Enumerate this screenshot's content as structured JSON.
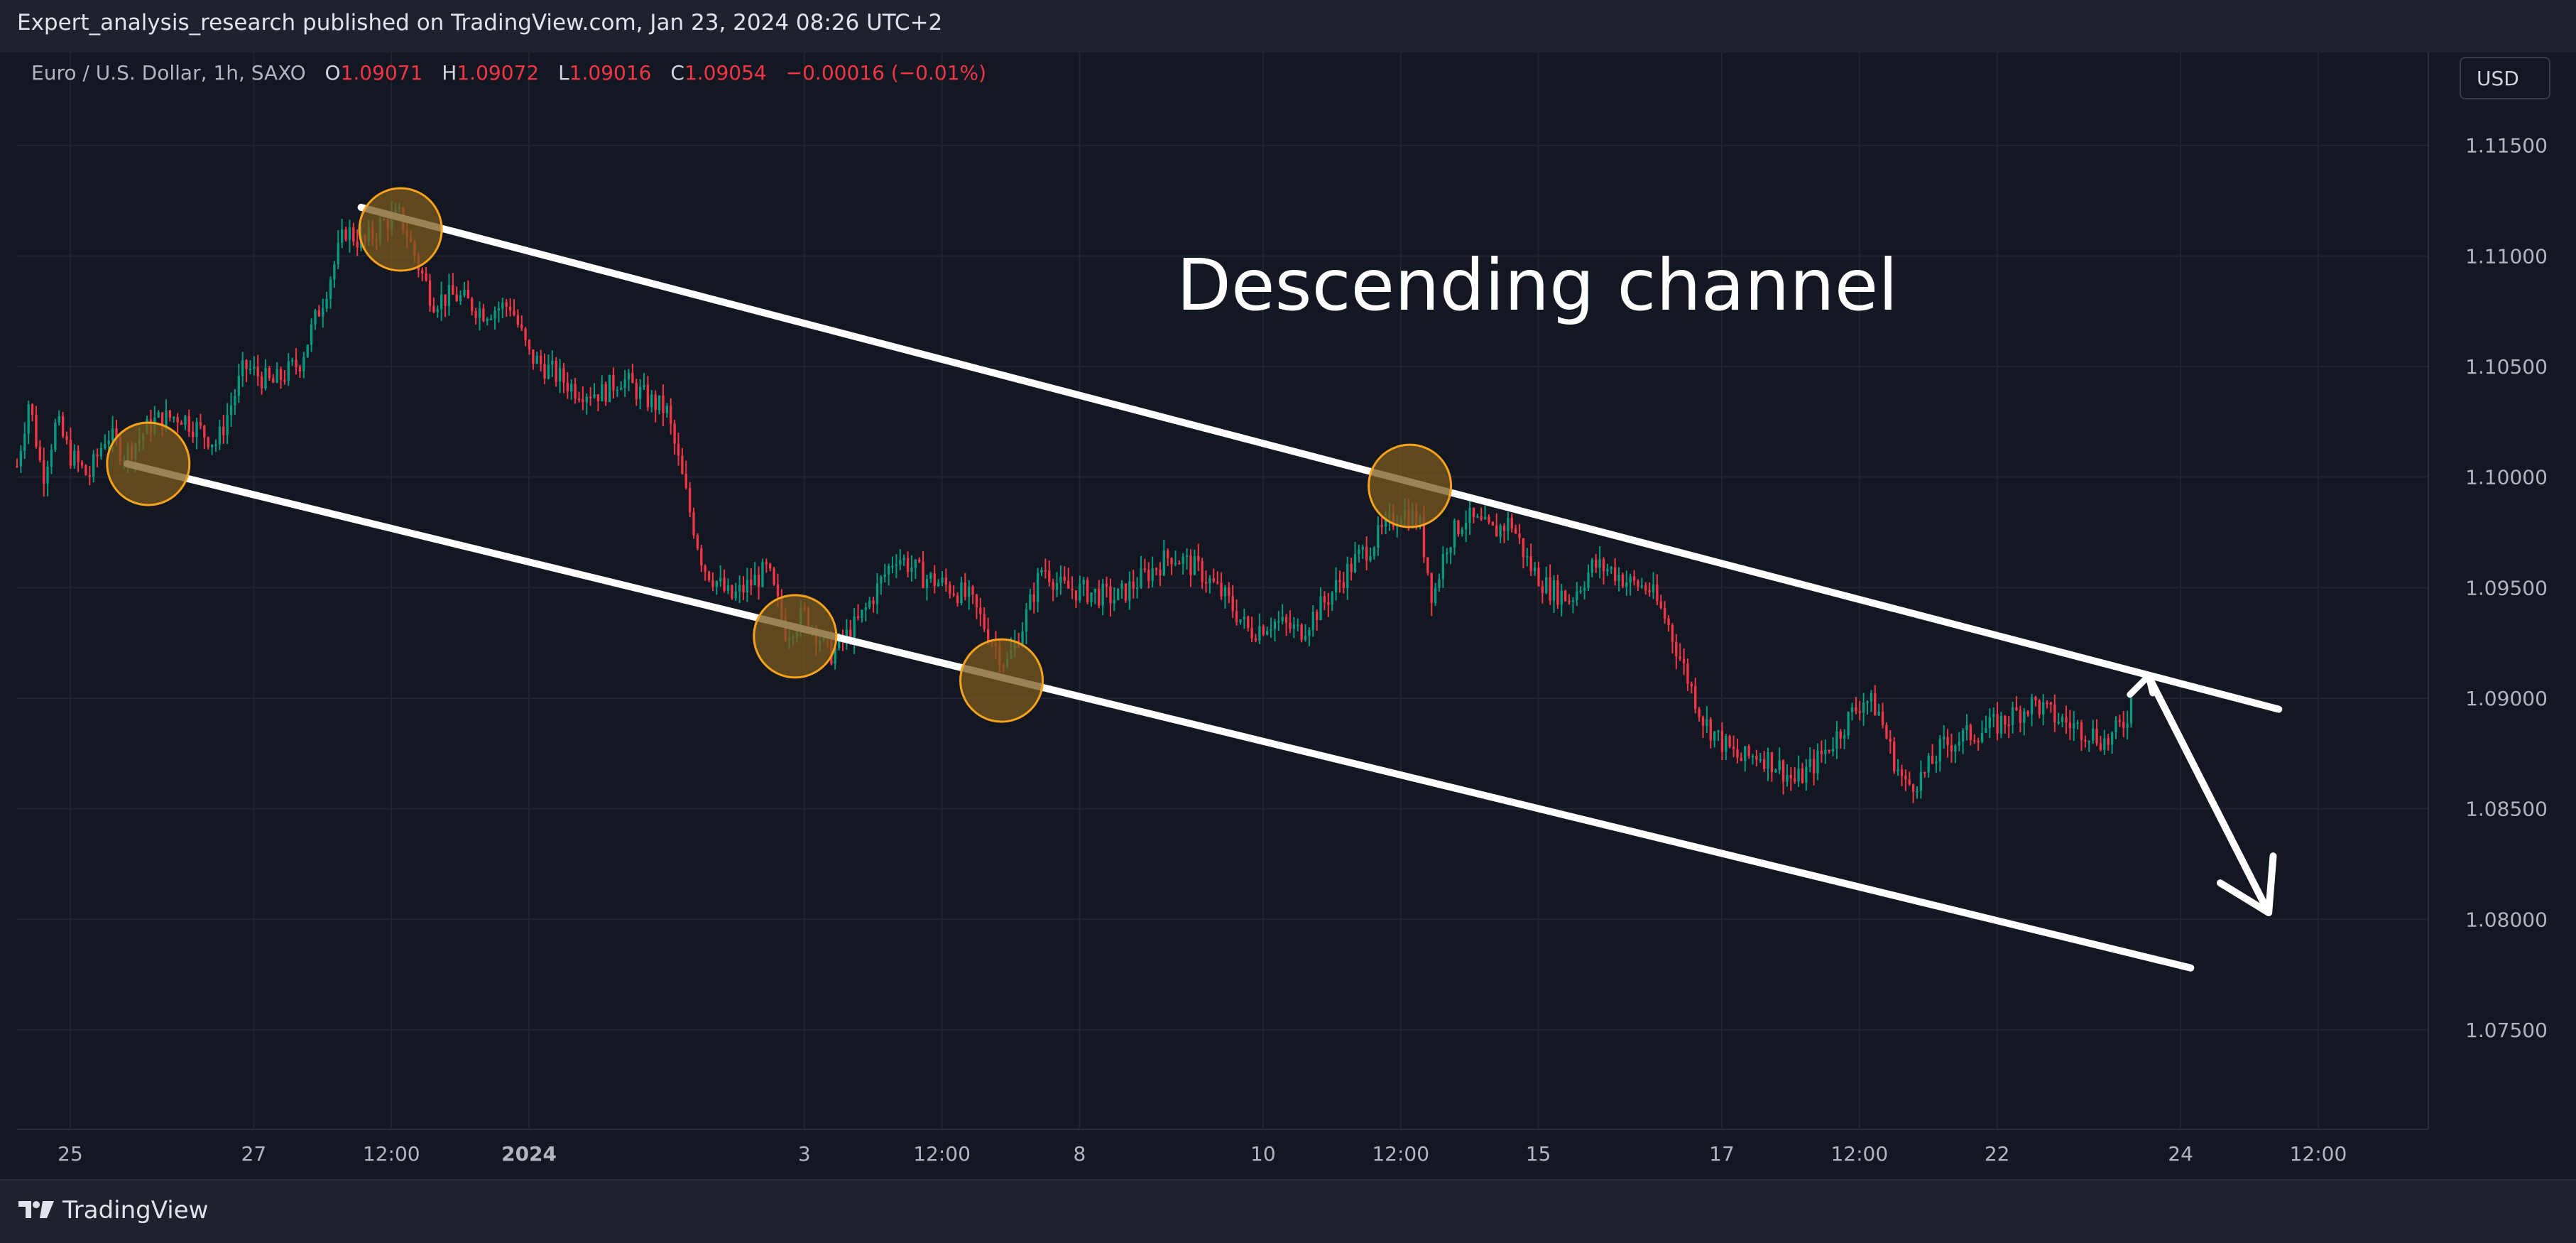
{
  "header": {
    "text": "Expert_analysis_research published on TradingView.com, Jan 23, 2024 08:26 UTC+2"
  },
  "legend": {
    "symbol": "Euro / U.S. Dollar, 1h, SAXO",
    "o_label": "O",
    "o_value": "1.09071",
    "h_label": "H",
    "h_value": "1.09072",
    "l_label": "L",
    "l_value": "1.09016",
    "c_label": "C",
    "c_value": "1.09054",
    "change": "−0.00016 (−0.01%)"
  },
  "currency_button": "USD",
  "footer": {
    "brand": "TradingView",
    "logo_icon": "tradingview-logo-icon"
  },
  "colors": {
    "background": "#131722",
    "grid": "#1f2430",
    "up_candle": "#089981",
    "down_candle": "#f23645",
    "annotation_line": "#ffffff",
    "marker_fill": "#7a5a1e",
    "marker_stroke": "#f7a21b"
  },
  "chart_data": {
    "type": "candlestick",
    "title": "",
    "annotation_text": "Descending channel",
    "symbol": "EURUSD",
    "interval": "1h",
    "x_ticks": [
      {
        "label": "25",
        "day": 25
      },
      {
        "label": "27",
        "day": 27
      },
      {
        "label": "12:00",
        "day": 28.5
      },
      {
        "label": "2024",
        "day": 30,
        "bold": true
      },
      {
        "label": "3",
        "day": 33
      },
      {
        "label": "12:00",
        "day": 34.5
      },
      {
        "label": "8",
        "day": 36
      },
      {
        "label": "10",
        "day": 38
      },
      {
        "label": "12:00",
        "day": 39.5
      },
      {
        "label": "15",
        "day": 41
      },
      {
        "label": "17",
        "day": 43
      },
      {
        "label": "12:00",
        "day": 44.5
      },
      {
        "label": "22",
        "day": 46
      },
      {
        "label": "24",
        "day": 48
      },
      {
        "label": "12:00",
        "day": 49.5
      }
    ],
    "y_ticks": [
      "1.11500",
      "1.11000",
      "1.10500",
      "1.10000",
      "1.09500",
      "1.09000",
      "1.08500",
      "1.08000",
      "1.07500"
    ],
    "ylim": [
      1.0705,
      1.1192
    ],
    "xlim": [
      24.42,
      50.7
    ],
    "price_path": [
      [
        24.42,
        1.1005
      ],
      [
        24.55,
        1.1035
      ],
      [
        24.7,
        1.1
      ],
      [
        24.85,
        1.1025
      ],
      [
        25.0,
        1.101
      ],
      [
        25.2,
        1.1
      ],
      [
        25.4,
        1.102
      ],
      [
        25.6,
        1.101
      ],
      [
        25.9,
        1.1025
      ],
      [
        26.2,
        1.1028
      ],
      [
        26.6,
        1.1015
      ],
      [
        26.9,
        1.105
      ],
      [
        27.2,
        1.1042
      ],
      [
        27.5,
        1.1052
      ],
      [
        27.75,
        1.108
      ],
      [
        28.0,
        1.1112
      ],
      [
        28.2,
        1.1105
      ],
      [
        28.4,
        1.1115
      ],
      [
        28.6,
        1.1118
      ],
      [
        28.8,
        1.1095
      ],
      [
        28.95,
        1.108
      ],
      [
        29.2,
        1.1082
      ],
      [
        29.5,
        1.1075
      ],
      [
        29.8,
        1.1078
      ],
      [
        30.0,
        1.1055
      ],
      [
        30.5,
        1.104
      ],
      [
        30.8,
        1.1038
      ],
      [
        31.0,
        1.1045
      ],
      [
        31.3,
        1.1035
      ],
      [
        31.5,
        1.103
      ],
      [
        31.75,
        1.0985
      ],
      [
        31.9,
        1.096
      ],
      [
        32.2,
        1.0945
      ],
      [
        32.6,
        1.0958
      ],
      [
        32.8,
        1.093
      ],
      [
        33.0,
        1.0938
      ],
      [
        33.3,
        1.092
      ],
      [
        33.6,
        1.0935
      ],
      [
        33.8,
        1.095
      ],
      [
        34.0,
        1.0965
      ],
      [
        34.3,
        1.0955
      ],
      [
        34.6,
        1.095
      ],
      [
        34.8,
        1.0945
      ],
      [
        35.0,
        1.093
      ],
      [
        35.2,
        1.0915
      ],
      [
        35.4,
        1.0935
      ],
      [
        35.6,
        1.096
      ],
      [
        35.8,
        1.095
      ],
      [
        36.1,
        1.0948
      ],
      [
        36.4,
        1.0945
      ],
      [
        36.7,
        1.0955
      ],
      [
        37.0,
        1.0965
      ],
      [
        37.3,
        1.0958
      ],
      [
        37.6,
        1.0945
      ],
      [
        37.85,
        1.093
      ],
      [
        38.1,
        1.0935
      ],
      [
        38.4,
        1.093
      ],
      [
        38.7,
        1.0945
      ],
      [
        39.0,
        1.0962
      ],
      [
        39.3,
        1.0975
      ],
      [
        39.5,
        1.0985
      ],
      [
        39.7,
        1.098
      ],
      [
        39.85,
        1.0945
      ],
      [
        40.0,
        1.097
      ],
      [
        40.2,
        1.0982
      ],
      [
        40.5,
        1.0975
      ],
      [
        40.7,
        1.098
      ],
      [
        40.9,
        1.096
      ],
      [
        41.1,
        1.095
      ],
      [
        41.35,
        1.0945
      ],
      [
        41.6,
        1.096
      ],
      [
        41.8,
        1.0958
      ],
      [
        42.0,
        1.0952
      ],
      [
        42.2,
        1.095
      ],
      [
        42.4,
        1.0935
      ],
      [
        42.6,
        1.0912
      ],
      [
        42.8,
        1.089
      ],
      [
        43.0,
        1.088
      ],
      [
        43.2,
        1.0872
      ],
      [
        43.4,
        1.0875
      ],
      [
        43.6,
        1.087
      ],
      [
        43.8,
        1.0862
      ],
      [
        44.0,
        1.087
      ],
      [
        44.2,
        1.088
      ],
      [
        44.4,
        1.0892
      ],
      [
        44.55,
        1.09
      ],
      [
        44.7,
        1.0895
      ],
      [
        44.85,
        1.0875
      ],
      [
        45.0,
        1.086
      ],
      [
        45.2,
        1.0865
      ],
      [
        45.4,
        1.0878
      ],
      [
        45.6,
        1.0882
      ],
      [
        45.8,
        1.0885
      ],
      [
        46.0,
        1.0888
      ],
      [
        46.2,
        1.0893
      ],
      [
        46.4,
        1.0898
      ],
      [
        46.6,
        1.0892
      ],
      [
        46.8,
        1.0888
      ],
      [
        47.0,
        1.0885
      ],
      [
        47.2,
        1.088
      ],
      [
        47.4,
        1.089
      ],
      [
        47.5,
        1.0905
      ]
    ],
    "channel_upper": {
      "x": [
        28.17,
        49.07
      ],
      "y": [
        1.1122,
        1.0895
      ]
    },
    "channel_lower": {
      "x": [
        25.62,
        48.11
      ],
      "y": [
        1.1006,
        1.0778
      ]
    },
    "touch_points": [
      {
        "x": 28.6,
        "y": 1.1112
      },
      {
        "x": 25.85,
        "y": 1.1006
      },
      {
        "x": 32.9,
        "y": 1.0928
      },
      {
        "x": 35.15,
        "y": 1.0908
      },
      {
        "x": 39.6,
        "y": 1.0996
      }
    ],
    "forecast_arrow": {
      "x": [
        47.65,
        48.96
      ],
      "y": [
        1.091,
        1.0803
      ]
    },
    "grid": true
  }
}
